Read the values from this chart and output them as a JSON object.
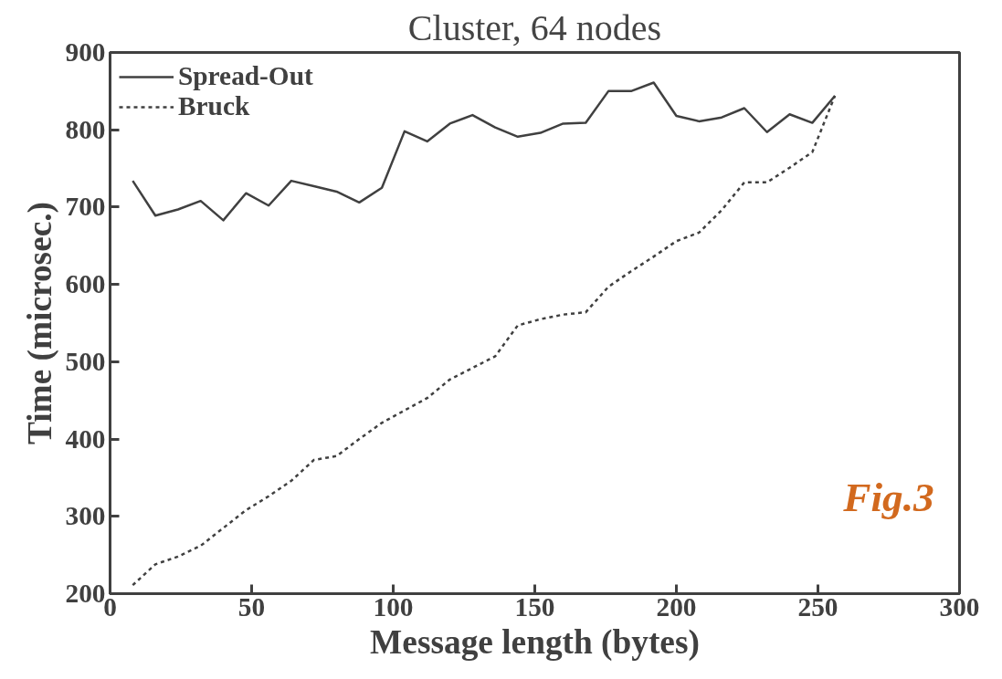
{
  "chart_data": {
    "type": "line",
    "title": "Cluster, 64 nodes",
    "xlabel": "Message length (bytes)",
    "ylabel": "Time (microsec.)",
    "x": [
      8,
      16,
      24,
      32,
      40,
      48,
      56,
      64,
      72,
      80,
      88,
      96,
      104,
      112,
      120,
      128,
      136,
      144,
      152,
      160,
      168,
      176,
      184,
      192,
      200,
      208,
      216,
      224,
      232,
      240,
      248,
      256
    ],
    "series": [
      {
        "name": "Spread-Out",
        "color": "#404040",
        "line_style": "solid",
        "values": [
          734,
          689,
          697,
          708,
          683,
          718,
          702,
          734,
          727,
          720,
          706,
          725,
          798,
          785,
          808,
          819,
          803,
          791,
          796,
          808,
          809,
          850,
          850,
          861,
          818,
          811,
          816,
          828,
          797,
          820,
          809,
          844
        ]
      },
      {
        "name": "Bruck",
        "color": "#404040",
        "line_style": "dashed",
        "values": [
          211,
          238,
          248,
          262,
          285,
          308,
          326,
          346,
          373,
          378,
          400,
          421,
          437,
          453,
          477,
          492,
          507,
          547,
          555,
          561,
          564,
          597,
          617,
          636,
          656,
          667,
          696,
          732,
          732,
          751,
          771,
          844
        ]
      }
    ],
    "xlim": [
      0,
      300
    ],
    "xticks": [
      0,
      50,
      100,
      150,
      200,
      250,
      300
    ],
    "ylim": [
      200,
      900
    ],
    "yticks": [
      200,
      300,
      400,
      500,
      600,
      700,
      800,
      900
    ],
    "grid": false,
    "legend": "top left",
    "marker": "none",
    "annotations": [
      "Fig.3"
    ]
  }
}
